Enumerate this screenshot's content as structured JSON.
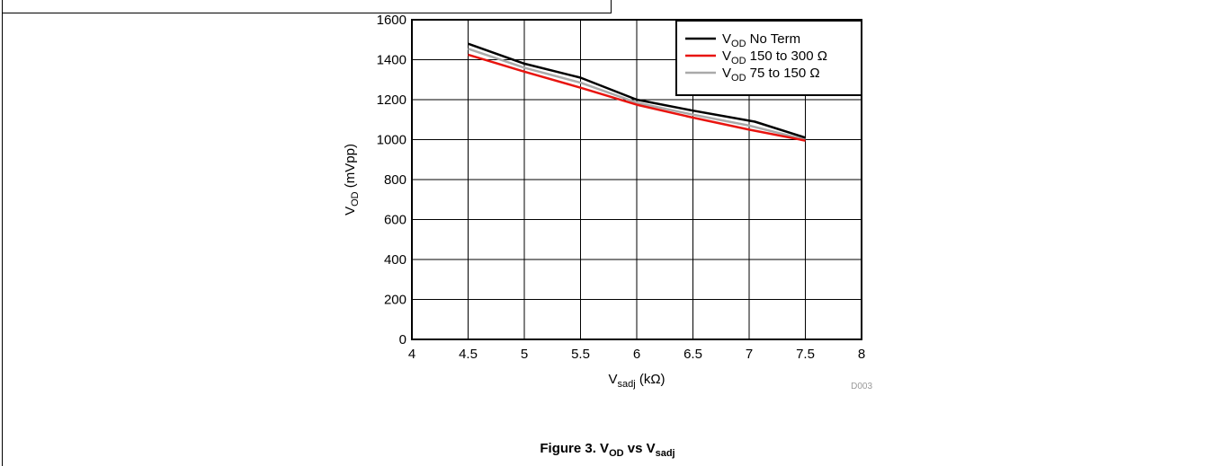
{
  "figure": {
    "caption_prefix": "Figure 3. V",
    "caption_sub1": "OD",
    "caption_mid": " vs V",
    "caption_sub2": "sadj"
  },
  "chart_data": {
    "type": "line",
    "xlim": [
      4,
      8
    ],
    "ylim": [
      0,
      1600
    ],
    "x_ticks": [
      4,
      4.5,
      5,
      5.5,
      6,
      6.5,
      7,
      7.5,
      8
    ],
    "x_tick_labels": [
      "4",
      "4.5",
      "5",
      "5.5",
      "6",
      "6.5",
      "7",
      "7.5",
      "8"
    ],
    "y_ticks": [
      0,
      200,
      400,
      600,
      800,
      1000,
      1200,
      1400,
      1600
    ],
    "y_tick_labels": [
      "0",
      "200",
      "400",
      "600",
      "800",
      "1000",
      "1200",
      "1400",
      "1600"
    ],
    "xlabel": {
      "main": "V",
      "sub": "sadj",
      "unit": " (kΩ)"
    },
    "ylabel": {
      "main": "V",
      "sub": "OD",
      "unit": " (mVpp)"
    },
    "grid": true,
    "legend_position": "top-right",
    "code": "D003",
    "series": [
      {
        "name_main": "V",
        "name_sub": "OD",
        "name_rest": " No Term",
        "color": "#000000",
        "x": [
          4.5,
          5.0,
          5.5,
          6.0,
          6.5,
          7.05,
          7.5
        ],
        "y": [
          1480,
          1380,
          1310,
          1200,
          1145,
          1090,
          1010
        ]
      },
      {
        "name_main": "V",
        "name_sub": "OD",
        "name_rest": " 150 to 300 Ω",
        "color": "#e8140f",
        "x": [
          4.5,
          5.0,
          5.5,
          6.0,
          6.5,
          7.0,
          7.5
        ],
        "y": [
          1425,
          1340,
          1260,
          1175,
          1110,
          1050,
          995
        ]
      },
      {
        "name_main": "V",
        "name_sub": "OD",
        "name_rest": " 75 to 150 Ω",
        "color": "#aaaaaa",
        "x": [
          4.5,
          5.0,
          5.5,
          6.0,
          6.5,
          7.0,
          7.5
        ],
        "y": [
          1455,
          1360,
          1285,
          1185,
          1125,
          1070,
          1000
        ]
      }
    ]
  }
}
